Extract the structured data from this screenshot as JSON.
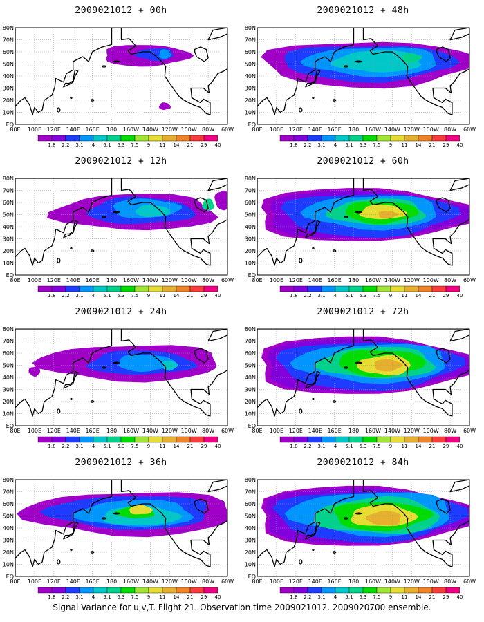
{
  "footer": "Signal Variance for u,v,T. Flight 21. Observation time 2009021012. 2009020700 ensemble.",
  "colorbar": {
    "labels": [
      "1.8",
      "2.2",
      "3.1",
      "4",
      "5.1",
      "6.3",
      "7.5",
      "9",
      "11",
      "14",
      "21",
      "29",
      "40"
    ],
    "colors": [
      "#a000c8",
      "#8200dc",
      "#1e3cff",
      "#0096ff",
      "#00c8c8",
      "#00d28c",
      "#00dc00",
      "#a0e632",
      "#e6dc32",
      "#e6af2d",
      "#f08228",
      "#fa3c3c",
      "#f00082"
    ]
  },
  "axes": {
    "lat_labels": [
      "80N",
      "70N",
      "60N",
      "50N",
      "40N",
      "30N",
      "20N",
      "10N",
      "EQ"
    ],
    "lon_labels": [
      "80E",
      "100E",
      "120E",
      "140E",
      "160E",
      "180",
      "160W",
      "140W",
      "120W",
      "100W",
      "80W",
      "60W"
    ]
  },
  "panels": [
    {
      "title": "2009021012 + 00h",
      "level": 0
    },
    {
      "title": "2009021012 + 48h",
      "level": 4
    },
    {
      "title": "2009021012 + 12h",
      "level": 1
    },
    {
      "title": "2009021012 + 60h",
      "level": 5
    },
    {
      "title": "2009021012 + 24h",
      "level": 2
    },
    {
      "title": "2009021012 + 72h",
      "level": 6
    },
    {
      "title": "2009021012 + 36h",
      "level": 3
    },
    {
      "title": "2009021012 + 84h",
      "level": 7
    }
  ]
}
